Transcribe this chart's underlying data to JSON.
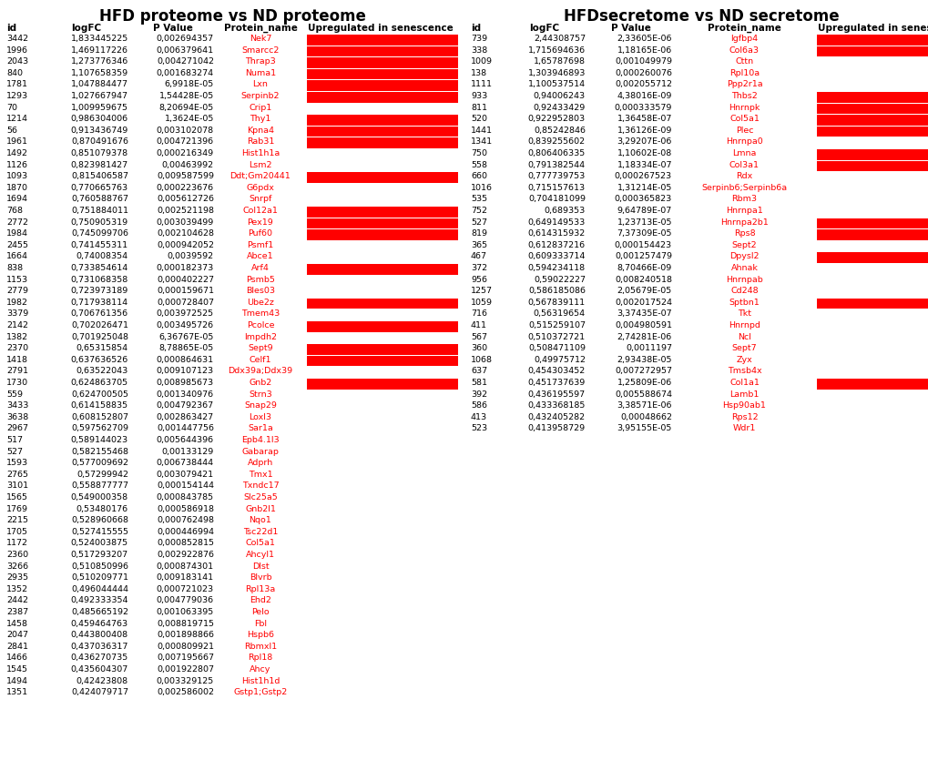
{
  "title_left": "HFD proteome vs ND proteome",
  "title_right": "HFDsecretome vs ND secretome",
  "left_headers": [
    "id",
    "logFC",
    "P Value",
    "Protein_name",
    "Upregulated in senescence"
  ],
  "right_headers": [
    "id",
    "logFC",
    "P Value",
    "Protein_name",
    "Upregulated in senescence"
  ],
  "left_data": [
    [
      "3442",
      "1,833445225",
      "0,002694357",
      "Nek7",
      true
    ],
    [
      "1996",
      "1,469117226",
      "0,006379641",
      "Smarcc2",
      true
    ],
    [
      "2043",
      "1,273776346",
      "0,004271042",
      "Thrap3",
      true
    ],
    [
      "840",
      "1,107658359",
      "0,001683274",
      "Numa1",
      true
    ],
    [
      "1781",
      "1,047884477",
      "6,9918E-05",
      "Lxn",
      true
    ],
    [
      "1293",
      "1,027667947",
      "1,54428E-05",
      "Serpinb2",
      true
    ],
    [
      "70",
      "1,009959675",
      "8,20694E-05",
      "Crip1",
      false
    ],
    [
      "1214",
      "0,986304006",
      "1,3624E-05",
      "Thy1",
      true
    ],
    [
      "56",
      "0,913436749",
      "0,003102078",
      "Kpna4",
      true
    ],
    [
      "1961",
      "0,870491676",
      "0,004721396",
      "Rab31",
      true
    ],
    [
      "1492",
      "0,851079378",
      "0,000216349",
      "Hist1h1a",
      false
    ],
    [
      "1126",
      "0,823981427",
      "0,00463992",
      "Lsm2",
      false
    ],
    [
      "1093",
      "0,815406587",
      "0,009587599",
      "Ddt;Gm20441",
      true
    ],
    [
      "1870",
      "0,770665763",
      "0,000223676",
      "G6pdx",
      false
    ],
    [
      "1694",
      "0,760588767",
      "0,005612726",
      "Snrpf",
      false
    ],
    [
      "768",
      "0,751884011",
      "0,002521198",
      "Col12a1",
      true
    ],
    [
      "2772",
      "0,750905319",
      "0,003039499",
      "Pex19",
      true
    ],
    [
      "1984",
      "0,745099706",
      "0,002104628",
      "Puf60",
      true
    ],
    [
      "2455",
      "0,741455311",
      "0,000942052",
      "Psmf1",
      false
    ],
    [
      "1664",
      "0,74008354",
      "0,0039592",
      "Abce1",
      false
    ],
    [
      "838",
      "0,733854614",
      "0,000182373",
      "Arf4",
      true
    ],
    [
      "1153",
      "0,731068358",
      "0,000402227",
      "Psmb5",
      false
    ],
    [
      "2779",
      "0,723973189",
      "0,000159671",
      "Bles03",
      false
    ],
    [
      "1982",
      "0,717938114",
      "0,000728407",
      "Ube2z",
      true
    ],
    [
      "3379",
      "0,706761356",
      "0,003972525",
      "Tmem43",
      false
    ],
    [
      "2142",
      "0,702026471",
      "0,003495726",
      "Pcolce",
      true
    ],
    [
      "1382",
      "0,701925048",
      "6,36767E-05",
      "Impdh2",
      false
    ],
    [
      "2370",
      "0,65315854",
      "8,78865E-05",
      "Sept9",
      true
    ],
    [
      "1418",
      "0,637636526",
      "0,000864631",
      "Celf1",
      true
    ],
    [
      "2791",
      "0,63522043",
      "0,009107123",
      "Ddx39a;Ddx39",
      false
    ],
    [
      "1730",
      "0,624863705",
      "0,008985673",
      "Gnb2",
      true
    ],
    [
      "559",
      "0,624700505",
      "0,001340976",
      "Strn3",
      false
    ],
    [
      "3433",
      "0,614158835",
      "0,004792367",
      "Snap29",
      false
    ],
    [
      "3638",
      "0,608152807",
      "0,002863427",
      "Loxl3",
      false
    ],
    [
      "2967",
      "0,597562709",
      "0,001447756",
      "Sar1a",
      false
    ],
    [
      "517",
      "0,589144023",
      "0,005644396",
      "Epb4.1l3",
      false
    ],
    [
      "527",
      "0,582155468",
      "0,00133129",
      "Gabarap",
      false
    ],
    [
      "1593",
      "0,577009692",
      "0,006738444",
      "Adprh",
      false
    ],
    [
      "2765",
      "0,57299942",
      "0,003079421",
      "Tmx1",
      false
    ],
    [
      "3101",
      "0,558877777",
      "0,000154144",
      "Txndc17",
      false
    ],
    [
      "1565",
      "0,549000358",
      "0,000843785",
      "Slc25a5",
      false
    ],
    [
      "1769",
      "0,53480176",
      "0,000586918",
      "Gnb2l1",
      false
    ],
    [
      "2215",
      "0,528960668",
      "0,000762498",
      "Nqo1",
      false
    ],
    [
      "1705",
      "0,527415555",
      "0,000446994",
      "Tsc22d1",
      false
    ],
    [
      "1172",
      "0,524003875",
      "0,000852815",
      "Col5a1",
      false
    ],
    [
      "2360",
      "0,517293207",
      "0,002922876",
      "Ahcyl1",
      false
    ],
    [
      "3266",
      "0,510850996",
      "0,000874301",
      "Dlst",
      false
    ],
    [
      "2935",
      "0,510209771",
      "0,009183141",
      "Blvrb",
      false
    ],
    [
      "1352",
      "0,496044444",
      "0,000721023",
      "Rpl13a",
      false
    ],
    [
      "2442",
      "0,492333354",
      "0,004779036",
      "Ehd2",
      false
    ],
    [
      "2387",
      "0,485665192",
      "0,001063395",
      "Pelo",
      false
    ],
    [
      "1458",
      "0,459464763",
      "0,008819715",
      "Fbl",
      false
    ],
    [
      "2047",
      "0,443800408",
      "0,001898866",
      "Hspb6",
      false
    ],
    [
      "2841",
      "0,437036317",
      "0,000809921",
      "Rbmxl1",
      false
    ],
    [
      "1466",
      "0,436270735",
      "0,007195667",
      "Rpl18",
      false
    ],
    [
      "1545",
      "0,435604307",
      "0,001922807",
      "Ahcy",
      false
    ],
    [
      "1494",
      "0,42423808",
      "0,003329125",
      "Hist1h1d",
      false
    ],
    [
      "1351",
      "0,424079717",
      "0,002586002",
      "Gstp1;Gstp2",
      false
    ]
  ],
  "right_data": [
    [
      "739",
      "2,44308757",
      "2,33605E-06",
      "Igfbp4",
      true
    ],
    [
      "338",
      "1,715694636",
      "1,18165E-06",
      "Col6a3",
      true
    ],
    [
      "1009",
      "1,65787698",
      "0,001049979",
      "Cttn",
      false
    ],
    [
      "138",
      "1,303946893",
      "0,000260076",
      "Rpl10a",
      false
    ],
    [
      "1111",
      "1,100537514",
      "0,002055712",
      "Ppp2r1a",
      false
    ],
    [
      "933",
      "0,94006243",
      "4,38016E-09",
      "Thbs2",
      true
    ],
    [
      "811",
      "0,92433429",
      "0,000333579",
      "Hnrnpk",
      true
    ],
    [
      "520",
      "0,922952803",
      "1,36458E-07",
      "Col5a1",
      true
    ],
    [
      "1441",
      "0,85242846",
      "1,36126E-09",
      "Plec",
      true
    ],
    [
      "1341",
      "0,839255602",
      "3,29207E-06",
      "Hnrnpa0",
      false
    ],
    [
      "750",
      "0,806406335",
      "1,10602E-08",
      "Lmna",
      true
    ],
    [
      "558",
      "0,791382544",
      "1,18334E-07",
      "Col3a1",
      true
    ],
    [
      "660",
      "0,777739753",
      "0,000267523",
      "Rdx",
      false
    ],
    [
      "1016",
      "0,715157613",
      "1,31214E-05",
      "Serpinb6;Serpinb6a",
      false
    ],
    [
      "535",
      "0,704181099",
      "0,000365823",
      "Rbm3",
      false
    ],
    [
      "752",
      "0,689353",
      "9,64789E-07",
      "Hnrnpa1",
      false
    ],
    [
      "527",
      "0,649149533",
      "1,23713E-05",
      "Hnrnpa2b1",
      true
    ],
    [
      "819",
      "0,614315932",
      "7,37309E-05",
      "Rps8",
      true
    ],
    [
      "365",
      "0,612837216",
      "0,000154423",
      "Sept2",
      false
    ],
    [
      "467",
      "0,609333714",
      "0,001257479",
      "Dpysl2",
      true
    ],
    [
      "372",
      "0,594234118",
      "8,70466E-09",
      "Ahnak",
      false
    ],
    [
      "956",
      "0,59022227",
      "0,008240518",
      "Hnrnpab",
      false
    ],
    [
      "1257",
      "0,586185086",
      "2,05679E-05",
      "Cd248",
      false
    ],
    [
      "1059",
      "0,567839111",
      "0,002017524",
      "Sptbn1",
      true
    ],
    [
      "716",
      "0,56319654",
      "3,37435E-07",
      "Tkt",
      false
    ],
    [
      "411",
      "0,515259107",
      "0,004980591",
      "Hnrnpd",
      false
    ],
    [
      "567",
      "0,510372721",
      "2,74281E-06",
      "Ncl",
      false
    ],
    [
      "360",
      "0,508471109",
      "0,0011197",
      "Sept7",
      false
    ],
    [
      "1068",
      "0,49975712",
      "2,93438E-05",
      "Zyx",
      false
    ],
    [
      "637",
      "0,454303452",
      "0,007272957",
      "Tmsb4x",
      false
    ],
    [
      "581",
      "0,451737639",
      "1,25809E-06",
      "Col1a1",
      true
    ],
    [
      "392",
      "0,436195597",
      "0,005588674",
      "Lamb1",
      false
    ],
    [
      "586",
      "0,433368185",
      "3,38571E-06",
      "Hsp90ab1",
      false
    ],
    [
      "413",
      "0,432405282",
      "0,00048662",
      "Rps12",
      false
    ],
    [
      "523",
      "0,413958729",
      "3,95155E-05",
      "Wdr1",
      false
    ]
  ],
  "bg_color": "#ffffff",
  "text_color": "#000000",
  "red_color": "#ff0000",
  "title_fontsize": 12,
  "header_fontsize": 7.5,
  "data_fontsize": 6.8
}
